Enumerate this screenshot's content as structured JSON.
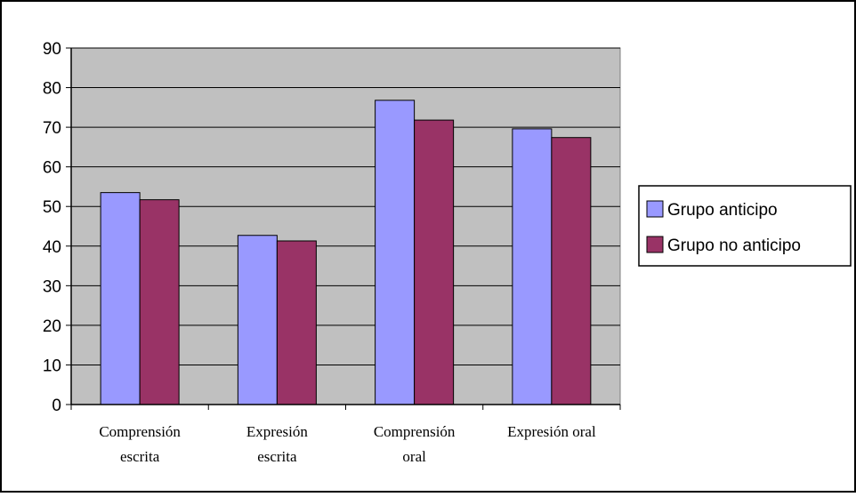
{
  "chart_data": {
    "type": "bar",
    "categories": [
      [
        "Comprensión",
        "escrita"
      ],
      [
        "Expresión",
        "escrita"
      ],
      [
        "Comprensión",
        "oral"
      ],
      [
        "Expresión oral"
      ]
    ],
    "series": [
      {
        "name": "Grupo anticipo",
        "values": [
          53.5,
          42.7,
          76.8,
          69.6
        ],
        "color": "#9999ff"
      },
      {
        "name": "Grupo no anticipo",
        "values": [
          51.7,
          41.3,
          71.8,
          67.4
        ],
        "color": "#993366"
      }
    ],
    "yticks": [
      "0",
      "10",
      "20",
      "30",
      "40",
      "50",
      "60",
      "70",
      "80",
      "90"
    ],
    "ylim": [
      0,
      90
    ],
    "title": "",
    "xlabel": "",
    "ylabel": "",
    "grid": true,
    "plot_background": "#c0c0c0",
    "legend_position": "right"
  }
}
